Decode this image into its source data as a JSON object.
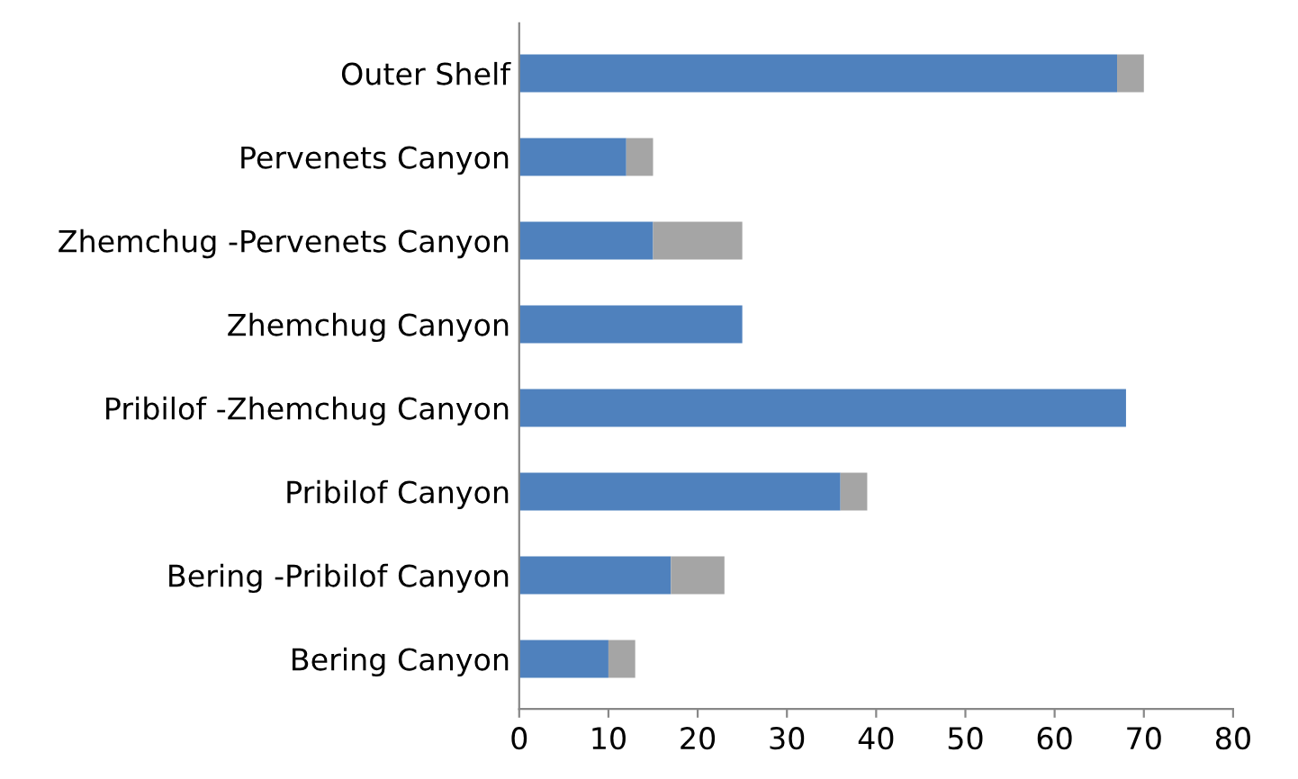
{
  "chart_data": {
    "type": "bar",
    "orientation": "horizontal",
    "stacked": true,
    "categories": [
      "Outer Shelf",
      "Pervenets Canyon",
      "Zhemchug -Pervenets Canyon",
      "Zhemchug Canyon",
      "Pribilof -Zhemchug Canyon",
      "Pribilof Canyon",
      "Bering -Pribilof Canyon",
      "Bering Canyon"
    ],
    "series": [
      {
        "color": "#4f81bd",
        "values": [
          67,
          12,
          15,
          25,
          68,
          36,
          17,
          10
        ]
      },
      {
        "color": "#a5a5a5",
        "values": [
          3,
          3,
          10,
          0,
          0,
          3,
          6,
          3
        ]
      }
    ],
    "xlim": [
      0,
      80
    ],
    "xticks": [
      0,
      10,
      20,
      30,
      40,
      50,
      60,
      70,
      80
    ],
    "grid": false,
    "legend": false
  }
}
